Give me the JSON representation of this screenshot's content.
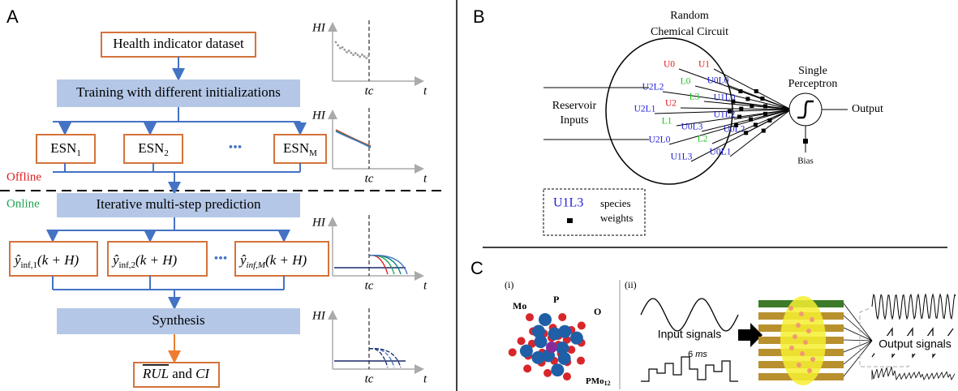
{
  "panel_a": {
    "label": "A",
    "dataset_box": "Health indicator dataset",
    "training_box": "Training with different initializations",
    "esn_boxes": [
      {
        "base": "ESN",
        "sub": "1"
      },
      {
        "base": "ESN",
        "sub": "2"
      },
      {
        "base": "ESN",
        "sub": "M"
      }
    ],
    "ellipsis": "•••",
    "offline": "Offline",
    "online": "Online",
    "prediction_box": "Iterative multi-step prediction",
    "prediction_boxes": [
      {
        "symbol": "ŷ",
        "sub": "inf,1",
        "arg": "(k + H)"
      },
      {
        "symbol": "ŷ",
        "sub": "inf,2",
        "arg": "(k + H)"
      },
      {
        "symbol": "ŷ",
        "sub": "inf,M",
        "arg": "(k + H)"
      }
    ],
    "synthesis_box": "Synthesis",
    "result_box": {
      "rul": "RUL",
      "and": "and",
      "ci": "CI"
    },
    "mini_plots": [
      {
        "y_label": "HI",
        "x_mark": "tc",
        "x_label": "t"
      },
      {
        "y_label": "HI",
        "x_mark": "tc",
        "x_label": "t"
      },
      {
        "y_label": "HI",
        "x_mark": "tc",
        "x_label": "t"
      },
      {
        "y_label": "HI",
        "x_mark": "tc",
        "x_label": "t"
      }
    ]
  },
  "panel_b": {
    "label": "B",
    "circuit_title": [
      "Random",
      "Chemical Circuit"
    ],
    "perceptron_title": [
      "Single",
      "Perceptron"
    ],
    "inputs_label": [
      "Reservoir",
      "Inputs"
    ],
    "output_label": "Output",
    "bias_label": "Bias",
    "species": [
      {
        "name": "U0",
        "color": "#e0191f"
      },
      {
        "name": "U1",
        "color": "#e0191f"
      },
      {
        "name": "U2L2",
        "color": "#1f1fd6"
      },
      {
        "name": "L0",
        "color": "#22c422"
      },
      {
        "name": "U0L0",
        "color": "#1f1fd6"
      },
      {
        "name": "L3",
        "color": "#22c422"
      },
      {
        "name": "U1L0",
        "color": "#1f1fd6"
      },
      {
        "name": "U2L1",
        "color": "#1f1fd6"
      },
      {
        "name": "U2",
        "color": "#e0191f"
      },
      {
        "name": "U1L2",
        "color": "#1f1fd6"
      },
      {
        "name": "L1",
        "color": "#22c422"
      },
      {
        "name": "U0L3",
        "color": "#1f1fd6"
      },
      {
        "name": "U0L2",
        "color": "#1f1fd6"
      },
      {
        "name": "U2L0",
        "color": "#1f1fd6"
      },
      {
        "name": "L2",
        "color": "#22c422"
      },
      {
        "name": "U1L3",
        "color": "#1f1fd6"
      },
      {
        "name": "U0L1",
        "color": "#1f1fd6"
      }
    ],
    "legend": {
      "example": "U1L3",
      "species": "species",
      "weights": "weights"
    }
  },
  "panel_c": {
    "label": "C",
    "sub_i": "(i)",
    "sub_ii": "(ii)",
    "atoms": {
      "mo": "Mo",
      "p": "P",
      "o": "O"
    },
    "molecule": {
      "base": "PMo",
      "sub": "12"
    },
    "input_signals": "Input signals",
    "interval": {
      "value": "6",
      "unit": "ms"
    },
    "output_signals": "Output signals"
  }
}
